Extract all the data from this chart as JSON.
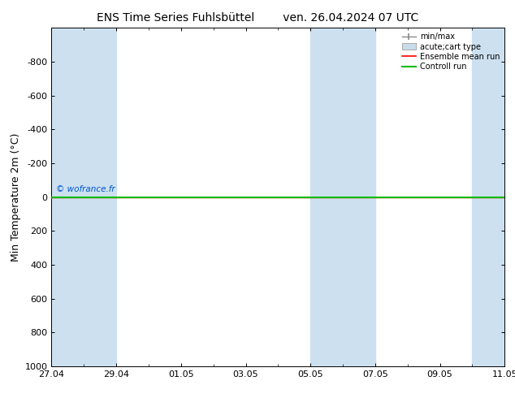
{
  "title_left": "ENS Time Series Fuhlsbüttel",
  "title_right": "ven. 26.04.2024 07 UTC",
  "ylabel": "Min Temperature 2m (°C)",
  "ylim": [
    1000,
    -1000
  ],
  "yticks": [
    -800,
    -600,
    -400,
    -200,
    0,
    200,
    400,
    600,
    800,
    1000
  ],
  "xtick_labels": [
    "27.04",
    "29.04",
    "01.05",
    "03.05",
    "05.05",
    "07.05",
    "09.05",
    "11.05"
  ],
  "xmin": 0,
  "xmax": 14,
  "band_ranges": [
    [
      0,
      2
    ],
    [
      8,
      10
    ],
    [
      13,
      14
    ]
  ],
  "band_color": "#cce0f0",
  "green_line_y": 0,
  "red_line_y": 0,
  "green_line_color": "#00bb00",
  "red_line_color": "#ff0000",
  "copyright_text": "© wofrance.fr",
  "copyright_color": "#0055cc",
  "legend_labels": [
    "min/max",
    "acute;cart type",
    "Ensemble mean run",
    "Controll run"
  ],
  "legend_handle_colors": [
    "#888888",
    "#c8dcea",
    "#ff0000",
    "#00bb00"
  ],
  "background_color": "#ffffff",
  "plot_bg_color": "#ffffff",
  "title_fontsize": 10,
  "axis_fontsize": 9,
  "tick_fontsize": 8
}
